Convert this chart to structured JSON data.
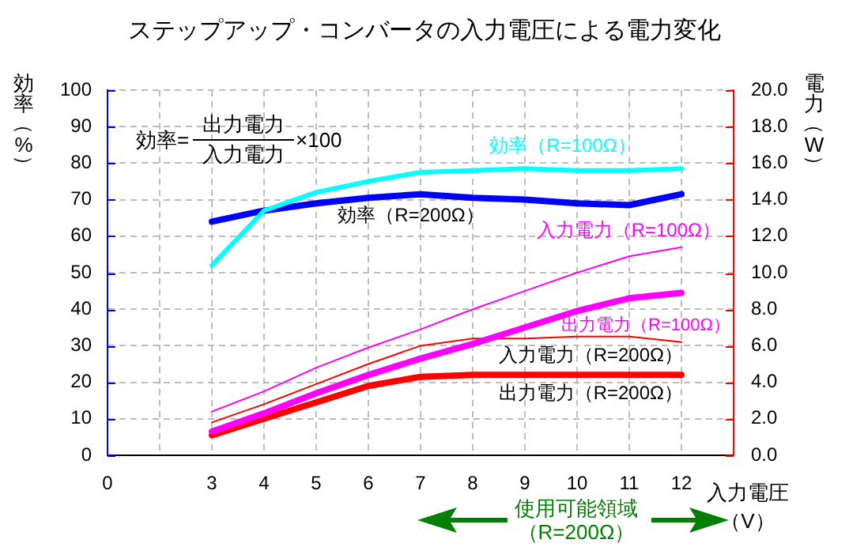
{
  "chart_data": {
    "type": "line",
    "title": "ステップアップ・コンバータの入力電圧による電力変化",
    "xlabel": "入力電圧（V）",
    "ylabel": "効率（%）",
    "y2label": "電力（W）",
    "annotations": [
      "効率=",
      "出力電力",
      "入力電力",
      "×100",
      "使用可能領域（R=200Ω）"
    ],
    "categories": [
      "0",
      null,
      "3",
      "4",
      "5",
      "6",
      "7",
      "8",
      "9",
      "10",
      "11",
      "12",
      null
    ],
    "series": [
      {
        "name": "効率（R=100Ω）",
        "color": "#00ffff",
        "values": [
          null,
          null,
          52,
          67,
          72,
          75,
          77.5,
          78,
          78.5,
          78,
          78,
          78.5,
          null
        ]
      },
      {
        "name": "効率（R=200Ω）",
        "color": "#0000ff",
        "values": [
          null,
          null,
          64,
          67,
          69,
          70.5,
          71.5,
          70.5,
          70,
          69,
          68.5,
          71.5,
          null
        ]
      },
      {
        "name": "入力電力（R=100Ω）",
        "color": "#ff00ff",
        "axis": "y2",
        "values": [
          null,
          null,
          2.4,
          3.5,
          4.8,
          5.9,
          6.9,
          8,
          9,
          10,
          10.9,
          11.4,
          null
        ]
      },
      {
        "name": "出力電力（R=100Ω）",
        "color": "#ff00ff",
        "axis": "y2",
        "values": [
          null,
          null,
          1.3,
          2.3,
          3.4,
          4.4,
          5.3,
          6.1,
          7,
          7.9,
          8.6,
          8.9,
          null
        ]
      },
      {
        "name": "入力電力（R=200Ω）",
        "color": "#ff0000",
        "axis": "y2",
        "values": [
          null,
          null,
          1.8,
          2.8,
          3.9,
          5,
          6,
          6.4,
          6.4,
          6.5,
          6.5,
          6.2,
          null
        ]
      },
      {
        "name": "出力電力（R=200Ω）",
        "color": "#ff0000",
        "axis": "y2",
        "values": [
          null,
          null,
          1.1,
          2,
          2.9,
          3.8,
          4.3,
          4.4,
          4.4,
          4.4,
          4.4,
          4.4,
          null
        ]
      }
    ],
    "ylim": [
      0,
      100
    ],
    "yticks": [
      0,
      10,
      20,
      30,
      40,
      50,
      60,
      70,
      80,
      90,
      100
    ],
    "y2lim": [
      0,
      20
    ],
    "y2ticks": [
      {
        "value": 0,
        "label": "0.0"
      },
      {
        "value": 2,
        "label": "2.0"
      },
      {
        "value": 4,
        "label": "4.0"
      },
      {
        "value": 6,
        "label": "6.0"
      },
      {
        "value": 8,
        "label": "8.0"
      },
      {
        "value": 10,
        "label": "10.0"
      },
      {
        "value": 12,
        "label": "12.0"
      },
      {
        "value": 14,
        "label": "14.0"
      },
      {
        "value": 16,
        "label": "16.0"
      },
      {
        "value": 18,
        "label": "18.0"
      },
      {
        "value": 20,
        "label": "20.0"
      }
    ],
    "grid": true
  }
}
